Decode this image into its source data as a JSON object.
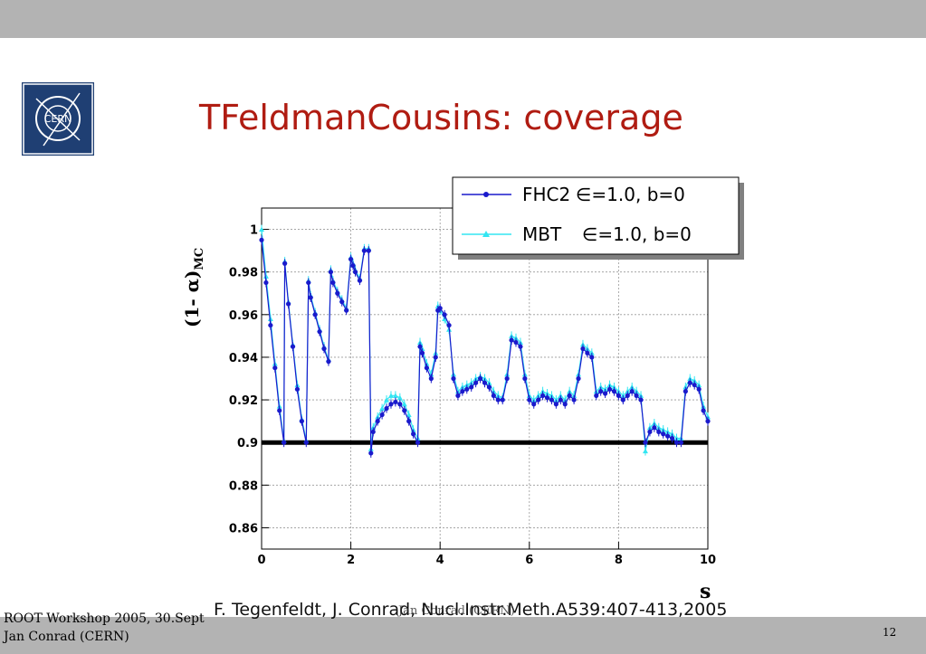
{
  "slide": {
    "title": "TFeldmanCousins: coverage",
    "logo_text": "CERN",
    "citation": "F. Tegenfeldt, J. Conrad, Nucl.Instr.Meth.A539:407-413,2005",
    "overlay_author": "Jan Conrad (CERN)",
    "footer_line1": "ROOT Workshop 2005, 30.Sept",
    "footer_line2": "Jan Conrad (CERN)",
    "page_number": "12"
  },
  "colors": {
    "title": "#b01c12",
    "logo": "#1f3f73",
    "fhc2": "#1a1acc",
    "mbt": "#33e6f2",
    "bar": "#b3b3b3"
  },
  "chart_data": {
    "type": "scatter",
    "xlabel": "s",
    "ylabel_main": "(1- α)",
    "ylabel_sub": "MC",
    "xlim": [
      0,
      10
    ],
    "ylim": [
      0.85,
      1.01
    ],
    "xticks": [
      "0",
      "2",
      "4",
      "6",
      "8",
      "10"
    ],
    "yticks": [
      "0.86",
      "0.88",
      "0.9",
      "0.92",
      "0.94",
      "0.96",
      "0.98",
      "1"
    ],
    "reference_line": 0.9,
    "grid": true,
    "legend_position": "top-right",
    "series": [
      {
        "name": "FHC2",
        "legend_params": "∈=1.0, b=0",
        "color": "#1a1acc",
        "x": [
          0.0,
          0.1,
          0.2,
          0.3,
          0.4,
          0.5,
          0.52,
          0.6,
          0.7,
          0.8,
          0.9,
          1.0,
          1.05,
          1.1,
          1.2,
          1.3,
          1.4,
          1.5,
          1.55,
          1.6,
          1.7,
          1.8,
          1.9,
          2.0,
          2.05,
          2.1,
          2.2,
          2.3,
          2.4,
          2.45,
          2.5,
          2.6,
          2.7,
          2.8,
          2.9,
          3.0,
          3.1,
          3.2,
          3.3,
          3.4,
          3.5,
          3.55,
          3.6,
          3.7,
          3.8,
          3.9,
          3.95,
          4.0,
          4.1,
          4.2,
          4.3,
          4.4,
          4.5,
          4.6,
          4.7,
          4.8,
          4.9,
          5.0,
          5.1,
          5.2,
          5.3,
          5.4,
          5.5,
          5.6,
          5.7,
          5.8,
          5.9,
          6.0,
          6.1,
          6.2,
          6.3,
          6.4,
          6.5,
          6.6,
          6.7,
          6.8,
          6.9,
          7.0,
          7.1,
          7.2,
          7.3,
          7.4,
          7.5,
          7.6,
          7.7,
          7.8,
          7.9,
          8.0,
          8.1,
          8.2,
          8.3,
          8.4,
          8.5,
          8.6,
          8.7,
          8.8,
          8.9,
          9.0,
          9.1,
          9.2,
          9.3,
          9.4,
          9.5,
          9.6,
          9.7,
          9.8,
          9.9,
          10.0
        ],
        "y": [
          0.995,
          0.975,
          0.955,
          0.935,
          0.915,
          0.9,
          0.984,
          0.965,
          0.945,
          0.925,
          0.91,
          0.9,
          0.975,
          0.968,
          0.96,
          0.952,
          0.944,
          0.938,
          0.98,
          0.975,
          0.97,
          0.966,
          0.962,
          0.986,
          0.983,
          0.98,
          0.976,
          0.99,
          0.99,
          0.895,
          0.905,
          0.91,
          0.913,
          0.916,
          0.918,
          0.919,
          0.918,
          0.915,
          0.91,
          0.904,
          0.9,
          0.945,
          0.942,
          0.935,
          0.93,
          0.94,
          0.962,
          0.963,
          0.96,
          0.955,
          0.93,
          0.922,
          0.924,
          0.925,
          0.926,
          0.928,
          0.93,
          0.928,
          0.926,
          0.922,
          0.92,
          0.92,
          0.93,
          0.948,
          0.947,
          0.945,
          0.93,
          0.92,
          0.918,
          0.92,
          0.922,
          0.921,
          0.92,
          0.918,
          0.92,
          0.918,
          0.922,
          0.92,
          0.93,
          0.944,
          0.942,
          0.94,
          0.922,
          0.924,
          0.923,
          0.925,
          0.924,
          0.922,
          0.92,
          0.922,
          0.924,
          0.922,
          0.92,
          0.9,
          0.905,
          0.907,
          0.905,
          0.904,
          0.903,
          0.902,
          0.9,
          0.9,
          0.924,
          0.928,
          0.927,
          0.925,
          0.915,
          0.91
        ]
      },
      {
        "name": "MBT",
        "legend_params": "∈=1.0, b=0",
        "color": "#33e6f2",
        "x": [
          0.0,
          0.1,
          0.2,
          0.3,
          0.4,
          0.5,
          0.52,
          0.6,
          0.7,
          0.8,
          0.9,
          1.0,
          1.05,
          1.1,
          1.2,
          1.3,
          1.4,
          1.5,
          1.55,
          1.6,
          1.7,
          1.8,
          1.9,
          2.0,
          2.05,
          2.1,
          2.2,
          2.3,
          2.4,
          2.45,
          2.5,
          2.6,
          2.7,
          2.8,
          2.9,
          3.0,
          3.1,
          3.2,
          3.3,
          3.4,
          3.5,
          3.55,
          3.6,
          3.7,
          3.8,
          3.9,
          3.95,
          4.0,
          4.1,
          4.2,
          4.3,
          4.4,
          4.5,
          4.6,
          4.7,
          4.8,
          4.9,
          5.0,
          5.1,
          5.2,
          5.3,
          5.4,
          5.5,
          5.6,
          5.7,
          5.8,
          5.9,
          6.0,
          6.1,
          6.2,
          6.3,
          6.4,
          6.5,
          6.6,
          6.7,
          6.8,
          6.9,
          7.0,
          7.1,
          7.2,
          7.3,
          7.4,
          7.5,
          7.6,
          7.7,
          7.8,
          7.9,
          8.0,
          8.1,
          8.2,
          8.3,
          8.4,
          8.5,
          8.6,
          8.7,
          8.8,
          8.9,
          9.0,
          9.1,
          9.2,
          9.3,
          9.4,
          9.5,
          9.6,
          9.7,
          9.8,
          9.9,
          10.0
        ],
        "y": [
          1.0,
          0.978,
          0.958,
          0.937,
          0.917,
          0.901,
          0.985,
          0.966,
          0.946,
          0.927,
          0.911,
          0.901,
          0.976,
          0.969,
          0.961,
          0.953,
          0.945,
          0.939,
          0.981,
          0.976,
          0.971,
          0.967,
          0.963,
          0.987,
          0.984,
          0.981,
          0.977,
          0.991,
          0.991,
          0.897,
          0.907,
          0.912,
          0.916,
          0.92,
          0.922,
          0.922,
          0.921,
          0.918,
          0.913,
          0.906,
          0.902,
          0.947,
          0.944,
          0.937,
          0.932,
          0.942,
          0.964,
          0.962,
          0.958,
          0.953,
          0.932,
          0.924,
          0.926,
          0.927,
          0.928,
          0.93,
          0.931,
          0.93,
          0.928,
          0.924,
          0.922,
          0.921,
          0.932,
          0.95,
          0.949,
          0.947,
          0.932,
          0.922,
          0.92,
          0.922,
          0.924,
          0.923,
          0.922,
          0.92,
          0.922,
          0.92,
          0.924,
          0.922,
          0.932,
          0.946,
          0.944,
          0.942,
          0.924,
          0.926,
          0.925,
          0.927,
          0.926,
          0.924,
          0.922,
          0.924,
          0.926,
          0.924,
          0.922,
          0.896,
          0.907,
          0.909,
          0.907,
          0.906,
          0.905,
          0.904,
          0.902,
          0.902,
          0.926,
          0.93,
          0.929,
          0.927,
          0.917,
          0.912
        ]
      }
    ]
  }
}
